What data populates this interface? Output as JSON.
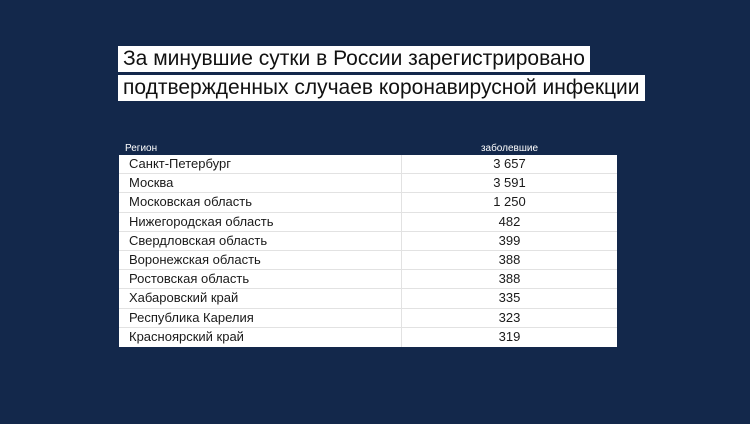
{
  "title": {
    "line1": "За минувшие сутки в России зарегистрировано",
    "line2": "подтвержденных случаев коронавирусной инфекции"
  },
  "table": {
    "headers": {
      "region": "Регион",
      "count": "заболевшие"
    },
    "rows": [
      {
        "region": "Санкт-Петербург",
        "count": "3 657"
      },
      {
        "region": "Москва",
        "count": "3 591"
      },
      {
        "region": "Московская область",
        "count": "1 250"
      },
      {
        "region": "Нижегородская область",
        "count": "482"
      },
      {
        "region": "Свердловская область",
        "count": "399"
      },
      {
        "region": "Воронежская область",
        "count": "388"
      },
      {
        "region": "Ростовская область",
        "count": "388"
      },
      {
        "region": "Хабаровский край",
        "count": "335"
      },
      {
        "region": "Республика Карелия",
        "count": "323"
      },
      {
        "region": "Красноярский край",
        "count": "319"
      }
    ]
  },
  "colors": {
    "background": "#13284b",
    "label_bg": "#ffffff"
  }
}
